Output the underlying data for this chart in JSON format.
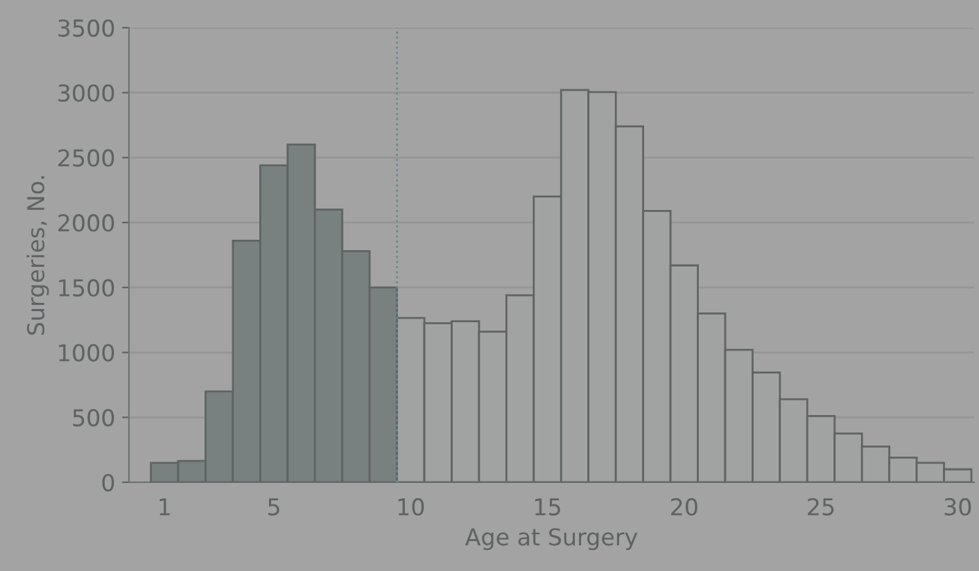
{
  "chart_data": {
    "type": "histogram",
    "xlabel": "Age at Surgery",
    "ylabel": "Surgeries, No.",
    "bins": [
      0.5,
      1.5,
      2.5,
      3.5,
      4.5,
      5.5,
      6.5,
      7.5,
      8.5,
      9.5,
      10.5,
      11.5,
      12.5,
      13.5,
      14.5,
      15.5,
      16.5,
      17.5,
      18.5,
      19.5,
      20.5,
      21.5,
      22.5,
      23.5,
      24.5,
      25.5,
      26.5,
      27.5,
      28.5,
      29.5,
      30.5
    ],
    "values": [
      150,
      165,
      700,
      1860,
      2440,
      2600,
      2100,
      1780,
      1500,
      1265,
      1225,
      1240,
      1160,
      1440,
      2200,
      3020,
      3005,
      2740,
      2090,
      1670,
      1300,
      1020,
      845,
      640,
      510,
      375,
      275,
      190,
      150,
      100
    ],
    "colors": [
      "#788080",
      "#788080",
      "#788080",
      "#788080",
      "#788080",
      "#788080",
      "#788080",
      "#788080",
      "#788080",
      "#a0a3a2",
      "#a0a3a2",
      "#a0a3a2",
      "#a0a3a2",
      "#a0a3a2",
      "#a0a3a2",
      "#a0a3a2",
      "#a0a3a2",
      "#a0a3a2",
      "#a0a3a2",
      "#a0a3a2",
      "#a0a3a2",
      "#a0a3a2",
      "#a0a3a2",
      "#a0a3a2",
      "#a0a3a2",
      "#a0a3a2",
      "#a0a3a2",
      "#a0a3a2",
      "#a0a3a2",
      "#a0a3a2"
    ],
    "xlim": [
      -0.3,
      30.6
    ],
    "xticks": [
      1,
      5,
      10,
      15,
      20,
      25,
      30
    ],
    "ylim": [
      0,
      3500
    ],
    "yticks": [
      0,
      500,
      1000,
      1500,
      2000,
      2500,
      3000,
      3500
    ],
    "ref_lines": [
      {
        "axis": "x",
        "value": 9.5,
        "color": "#5a8f9a",
        "line_style": "dotted"
      }
    ],
    "grid": "y"
  }
}
